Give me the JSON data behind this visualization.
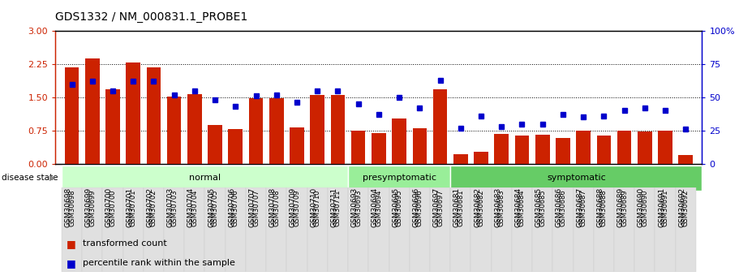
{
  "title": "GDS1332 / NM_000831.1_PROBE1",
  "categories": [
    "GSM30698",
    "GSM30699",
    "GSM30700",
    "GSM30701",
    "GSM30702",
    "GSM30703",
    "GSM30704",
    "GSM30705",
    "GSM30706",
    "GSM30707",
    "GSM30708",
    "GSM30709",
    "GSM30710",
    "GSM30711",
    "GSM30693",
    "GSM30694",
    "GSM30695",
    "GSM30696",
    "GSM30697",
    "GSM30681",
    "GSM30682",
    "GSM30683",
    "GSM30684",
    "GSM30685",
    "GSM30686",
    "GSM30687",
    "GSM30688",
    "GSM30689",
    "GSM30690",
    "GSM30691",
    "GSM30692"
  ],
  "bar_values": [
    2.18,
    2.38,
    1.68,
    2.28,
    2.18,
    1.52,
    1.58,
    0.88,
    0.78,
    1.48,
    1.48,
    0.82,
    1.56,
    1.56,
    0.74,
    0.7,
    1.02,
    0.8,
    1.68,
    0.22,
    0.28,
    0.68,
    0.64,
    0.66,
    0.58,
    0.75,
    0.64,
    0.75,
    0.72,
    0.74,
    0.2
  ],
  "dot_values": [
    60,
    62,
    55,
    62,
    62,
    52,
    55,
    48,
    43,
    51,
    52,
    46,
    55,
    55,
    45,
    37,
    50,
    42,
    63,
    27,
    36,
    28,
    30,
    30,
    37,
    35,
    36,
    40,
    42,
    40,
    26
  ],
  "groups": [
    {
      "label": "normal",
      "start": 0,
      "end": 14,
      "color": "#ccffcc"
    },
    {
      "label": "presymptomatic",
      "start": 14,
      "end": 19,
      "color": "#99ee99"
    },
    {
      "label": "symptomatic",
      "start": 19,
      "end": 31,
      "color": "#66cc66"
    }
  ],
  "bar_color": "#cc2200",
  "dot_color": "#0000cc",
  "ylim_left": [
    0,
    3
  ],
  "ylim_right": [
    0,
    100
  ],
  "yticks_left": [
    0,
    0.75,
    1.5,
    2.25,
    3
  ],
  "yticks_right": [
    0,
    25,
    50,
    75,
    100
  ],
  "background_color": "#ffffff",
  "title_fontsize": 10,
  "disease_state_label": "disease state",
  "legend_bar_label": "transformed count",
  "legend_dot_label": "percentile rank within the sample",
  "bar_color_legend": "#cc2200",
  "dot_color_legend": "#0000cc"
}
